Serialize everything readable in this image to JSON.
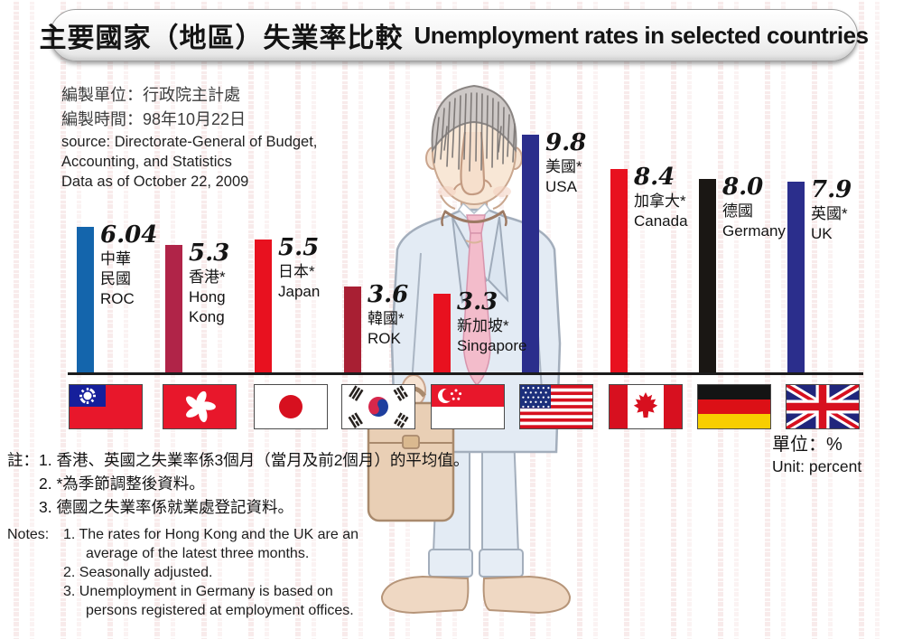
{
  "title": {
    "zh": "主要國家（地區）失業率比較",
    "en": "Unemployment rates in selected countries"
  },
  "source": {
    "lines": [
      {
        "text": "編製單位：行政院主計處",
        "lang": "zh"
      },
      {
        "text": "編製時間：98年10月22日",
        "lang": "zh"
      },
      {
        "text": "source: Directorate-General of Budget,",
        "lang": "en"
      },
      {
        "text": "Accounting, and Statistics",
        "lang": "en"
      },
      {
        "text": "Data as of October 22, 2009",
        "lang": "en"
      }
    ]
  },
  "unit": {
    "zh": "單位：%",
    "en": "Unit: percent"
  },
  "notes_zh": {
    "prefix": "註：",
    "items": [
      "1. 香港、英國之失業率係3個月（當月及前2個月）的平均值。",
      "2. *為季節調整後資料。",
      "3. 德國之失業率係就業處登記資料。"
    ]
  },
  "notes_en": {
    "prefix": "Notes:",
    "items": [
      {
        "text": "1. The rates for Hong Kong and the UK are an",
        "cont": false
      },
      {
        "text": "average of the latest three months.",
        "cont": true
      },
      {
        "text": "2. Seasonally adjusted.",
        "cont": false
      },
      {
        "text": "3. Unemployment in Germany is based on",
        "cont": false
      },
      {
        "text": "persons registered at employment offices.",
        "cont": true
      }
    ]
  },
  "chart_data": {
    "type": "bar",
    "title": "主要國家（地區）失業率比較 Unemployment rates in selected countries",
    "ylabel": "Unemployment rate",
    "unit": "percent (%)",
    "ylim": [
      0,
      10
    ],
    "grid": false,
    "categories": [
      "ROC (Taiwan)",
      "Hong Kong",
      "Japan",
      "ROK (South Korea)",
      "Singapore",
      "USA",
      "Canada",
      "Germany",
      "UK"
    ],
    "values": [
      6.04,
      5.3,
      5.5,
      3.6,
      3.3,
      9.8,
      8.4,
      8.0,
      7.9
    ],
    "bars": [
      {
        "value": 6.04,
        "value_label": "6.04",
        "name_lines": [
          "中華",
          "民國",
          "ROC"
        ],
        "color": "#1465ac",
        "flag": "taiwan"
      },
      {
        "value": 5.3,
        "value_label": "5.3",
        "name_lines": [
          "香港*",
          "Hong",
          "Kong"
        ],
        "color": "#b02448",
        "flag": "hong-kong"
      },
      {
        "value": 5.5,
        "value_label": "5.5",
        "name_lines": [
          "日本*",
          "Japan"
        ],
        "color": "#e8111f",
        "flag": "japan"
      },
      {
        "value": 3.6,
        "value_label": "3.6",
        "name_lines": [
          "韓國*",
          "ROK"
        ],
        "color": "#a81f33",
        "flag": "south-korea"
      },
      {
        "value": 3.3,
        "value_label": "3.3",
        "name_lines": [
          "新加坡*",
          "Singapore"
        ],
        "color": "#e8111f",
        "flag": "singapore"
      },
      {
        "value": 9.8,
        "value_label": "9.8",
        "name_lines": [
          "美國*",
          "USA"
        ],
        "color": "#2b2e8c",
        "flag": "usa"
      },
      {
        "value": 8.4,
        "value_label": "8.4",
        "name_lines": [
          "加拿大*",
          "Canada"
        ],
        "color": "#e8111f",
        "flag": "canada"
      },
      {
        "value": 8.0,
        "value_label": "8.0",
        "name_lines": [
          "德國",
          "Germany"
        ],
        "color": "#1a1714",
        "flag": "germany"
      },
      {
        "value": 7.9,
        "value_label": "7.9",
        "name_lines": [
          "英國*",
          "UK"
        ],
        "color": "#2b2e8c",
        "flag": "uk"
      }
    ],
    "footnote_marker": "*",
    "seasonally_adjusted_marker_meaning": "*為季節調整後資料 (seasonally adjusted)"
  }
}
